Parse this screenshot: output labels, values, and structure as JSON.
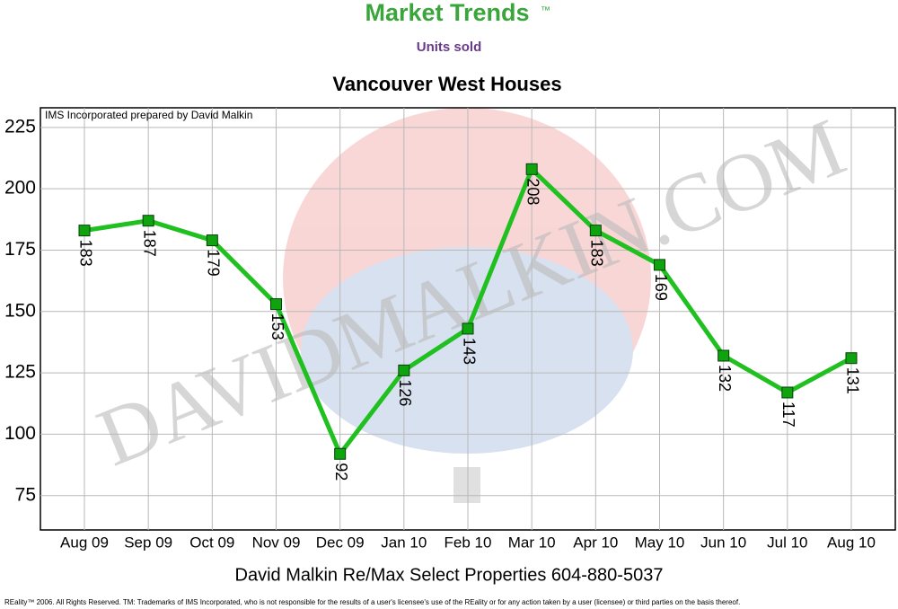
{
  "chart_data": {
    "type": "line",
    "brand": "Market Trends",
    "brand_mark": "™",
    "subtitle": "Units sold",
    "title": "Vancouver West Houses",
    "note": "IMS Incorporated prepared by David Malkin",
    "watermark": "DAVIDMALKIN.COM",
    "x_label": "David Malkin Re/Max Select Properties 604-880-5037",
    "disclaimer": "REality™ 2006. All Rights Reserved. TM: Trademarks of IMS Incorporated, who is not responsible for the results of a user's licensee's use of the REality  or for any action taken by a user (licensee) or third parties on the basis thereof.",
    "categories": [
      "Aug 09",
      "Sep 09",
      "Oct 09",
      "Nov 09",
      "Dec 09",
      "Jan 10",
      "Feb 10",
      "Mar 10",
      "Apr 10",
      "May 10",
      "Jun 10",
      "Jul 10",
      "Aug 10"
    ],
    "series": [
      {
        "name": "Units sold",
        "color": "#1fc01f",
        "values": [
          183,
          187,
          179,
          153,
          92,
          126,
          143,
          208,
          183,
          169,
          132,
          117,
          131
        ]
      }
    ],
    "ylim": [
      61,
      233
    ],
    "yticks": [
      75,
      100,
      125,
      150,
      175,
      200,
      225
    ],
    "grid": true
  }
}
